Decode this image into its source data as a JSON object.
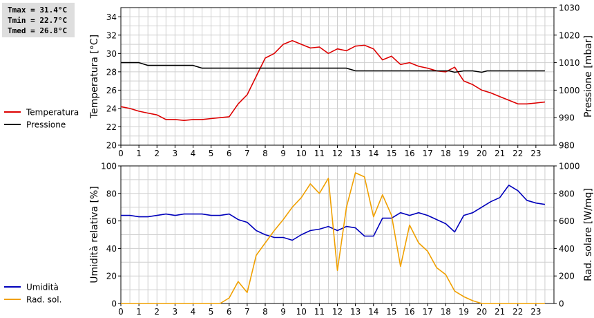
{
  "stats": {
    "tmax": "Tmax = 31.4°C",
    "tmin": "Tmin = 22.7°C",
    "tmed": "Tmed = 26.8°C"
  },
  "colors": {
    "temperature": "#dd0000",
    "pressure": "#000000",
    "humidity": "#0000bb",
    "radiation": "#f0a000",
    "grid": "#cfcfcf"
  },
  "chart_data": [
    {
      "type": "line",
      "x_ticks": [
        0,
        1,
        2,
        3,
        4,
        5,
        6,
        7,
        8,
        9,
        10,
        11,
        12,
        13,
        14,
        15,
        16,
        17,
        18,
        19,
        20,
        21,
        22,
        23
      ],
      "xlim": [
        0,
        24
      ],
      "ylabel": "Temperatura [°C]",
      "ylim": [
        20,
        35
      ],
      "y_ticks": [
        20,
        22,
        24,
        26,
        28,
        30,
        32,
        34
      ],
      "y2label": "Pressione [mbar]",
      "y2lim": [
        980,
        1030
      ],
      "y2_ticks": [
        980,
        990,
        1000,
        1010,
        1020,
        1030
      ],
      "grid": true,
      "legend_position": "left",
      "series": [
        {
          "name": "Temperatura",
          "axis": "left",
          "color": "#dd0000",
          "x": [
            0,
            0.5,
            1,
            1.5,
            2,
            2.5,
            3,
            3.5,
            4,
            4.5,
            5,
            5.5,
            6,
            6.5,
            7,
            7.5,
            8,
            8.5,
            9,
            9.5,
            10,
            10.5,
            11,
            11.5,
            12,
            12.5,
            13,
            13.5,
            14,
            14.5,
            15,
            15.5,
            16,
            16.5,
            17,
            17.5,
            18,
            18.5,
            19,
            19.5,
            20,
            20.5,
            21,
            21.5,
            22,
            22.5,
            23,
            23.5
          ],
          "y": [
            24.2,
            24.0,
            23.7,
            23.5,
            23.3,
            22.8,
            22.8,
            22.7,
            22.8,
            22.8,
            22.9,
            23.0,
            23.1,
            24.5,
            25.5,
            27.5,
            29.5,
            30.0,
            31.0,
            31.4,
            31.0,
            30.6,
            30.7,
            30.0,
            30.5,
            30.3,
            30.8,
            30.9,
            30.5,
            29.3,
            29.7,
            28.8,
            29.0,
            28.6,
            28.4,
            28.1,
            28.0,
            28.5,
            27.0,
            26.6,
            26.0,
            25.7,
            25.3,
            24.9,
            24.5,
            24.5,
            24.6,
            24.7
          ]
        },
        {
          "name": "Pressione",
          "axis": "right",
          "color": "#000000",
          "x": [
            0,
            1,
            1.5,
            4,
            4.5,
            12.5,
            13,
            18.2,
            18.5,
            19,
            19.5,
            20,
            20.3,
            23.5
          ],
          "y": [
            1010,
            1010,
            1009,
            1009,
            1008,
            1008,
            1007,
            1007,
            1006.5,
            1007,
            1007,
            1006.5,
            1007,
            1007
          ]
        }
      ]
    },
    {
      "type": "line",
      "x_ticks": [
        0,
        1,
        2,
        3,
        4,
        5,
        6,
        7,
        8,
        9,
        10,
        11,
        12,
        13,
        14,
        15,
        16,
        17,
        18,
        19,
        20,
        21,
        22,
        23
      ],
      "xlim": [
        0,
        24
      ],
      "ylabel": "Umidità relativa [%]",
      "ylim": [
        0,
        100
      ],
      "y_ticks": [
        0,
        20,
        40,
        60,
        80,
        100
      ],
      "y2label": "Rad. solare [W/mq]",
      "y2lim": [
        0,
        1000
      ],
      "y2_ticks": [
        0,
        200,
        400,
        600,
        800,
        1000
      ],
      "grid": true,
      "legend_position": "left",
      "series": [
        {
          "name": "Umidità",
          "axis": "left",
          "color": "#0000bb",
          "x": [
            0,
            0.5,
            1,
            1.5,
            2,
            2.5,
            3,
            3.5,
            4,
            4.5,
            5,
            5.5,
            6,
            6.5,
            7,
            7.5,
            8,
            8.5,
            9,
            9.5,
            10,
            10.5,
            11,
            11.5,
            12,
            12.5,
            13,
            13.5,
            14,
            14.5,
            15,
            15.5,
            16,
            16.5,
            17,
            17.5,
            18,
            18.5,
            19,
            19.5,
            20,
            20.5,
            21,
            21.5,
            22,
            22.5,
            23,
            23.5
          ],
          "y": [
            64,
            64,
            63,
            63,
            64,
            65,
            64,
            65,
            65,
            65,
            64,
            64,
            65,
            61,
            59,
            53,
            50,
            48,
            48,
            46,
            50,
            53,
            54,
            56,
            53,
            56,
            55,
            49,
            49,
            62,
            62,
            66,
            64,
            66,
            64,
            61,
            58,
            52,
            64,
            66,
            70,
            74,
            77,
            86,
            82,
            75,
            73,
            72
          ]
        },
        {
          "name": "Rad. sol.",
          "axis": "right",
          "color": "#f0a000",
          "x": [
            0,
            0.5,
            1,
            1.5,
            2,
            2.5,
            3,
            3.5,
            4,
            4.5,
            5,
            5.5,
            6,
            6.5,
            7,
            7.5,
            8,
            8.5,
            9,
            9.5,
            10,
            10.5,
            11,
            11.5,
            12,
            12.5,
            13,
            13.5,
            14,
            14.5,
            15,
            15.5,
            16,
            16.5,
            17,
            17.5,
            18,
            18.5,
            19,
            19.5,
            20,
            20.5,
            21,
            21.5,
            22,
            22.5,
            23,
            23.5
          ],
          "y": [
            0,
            0,
            0,
            0,
            0,
            0,
            0,
            0,
            0,
            0,
            0,
            0,
            40,
            160,
            80,
            350,
            440,
            530,
            610,
            700,
            770,
            870,
            800,
            910,
            240,
            700,
            950,
            920,
            630,
            790,
            640,
            270,
            570,
            440,
            380,
            260,
            210,
            90,
            50,
            20,
            0,
            0,
            0,
            0,
            0,
            0,
            0,
            0
          ]
        }
      ]
    }
  ]
}
